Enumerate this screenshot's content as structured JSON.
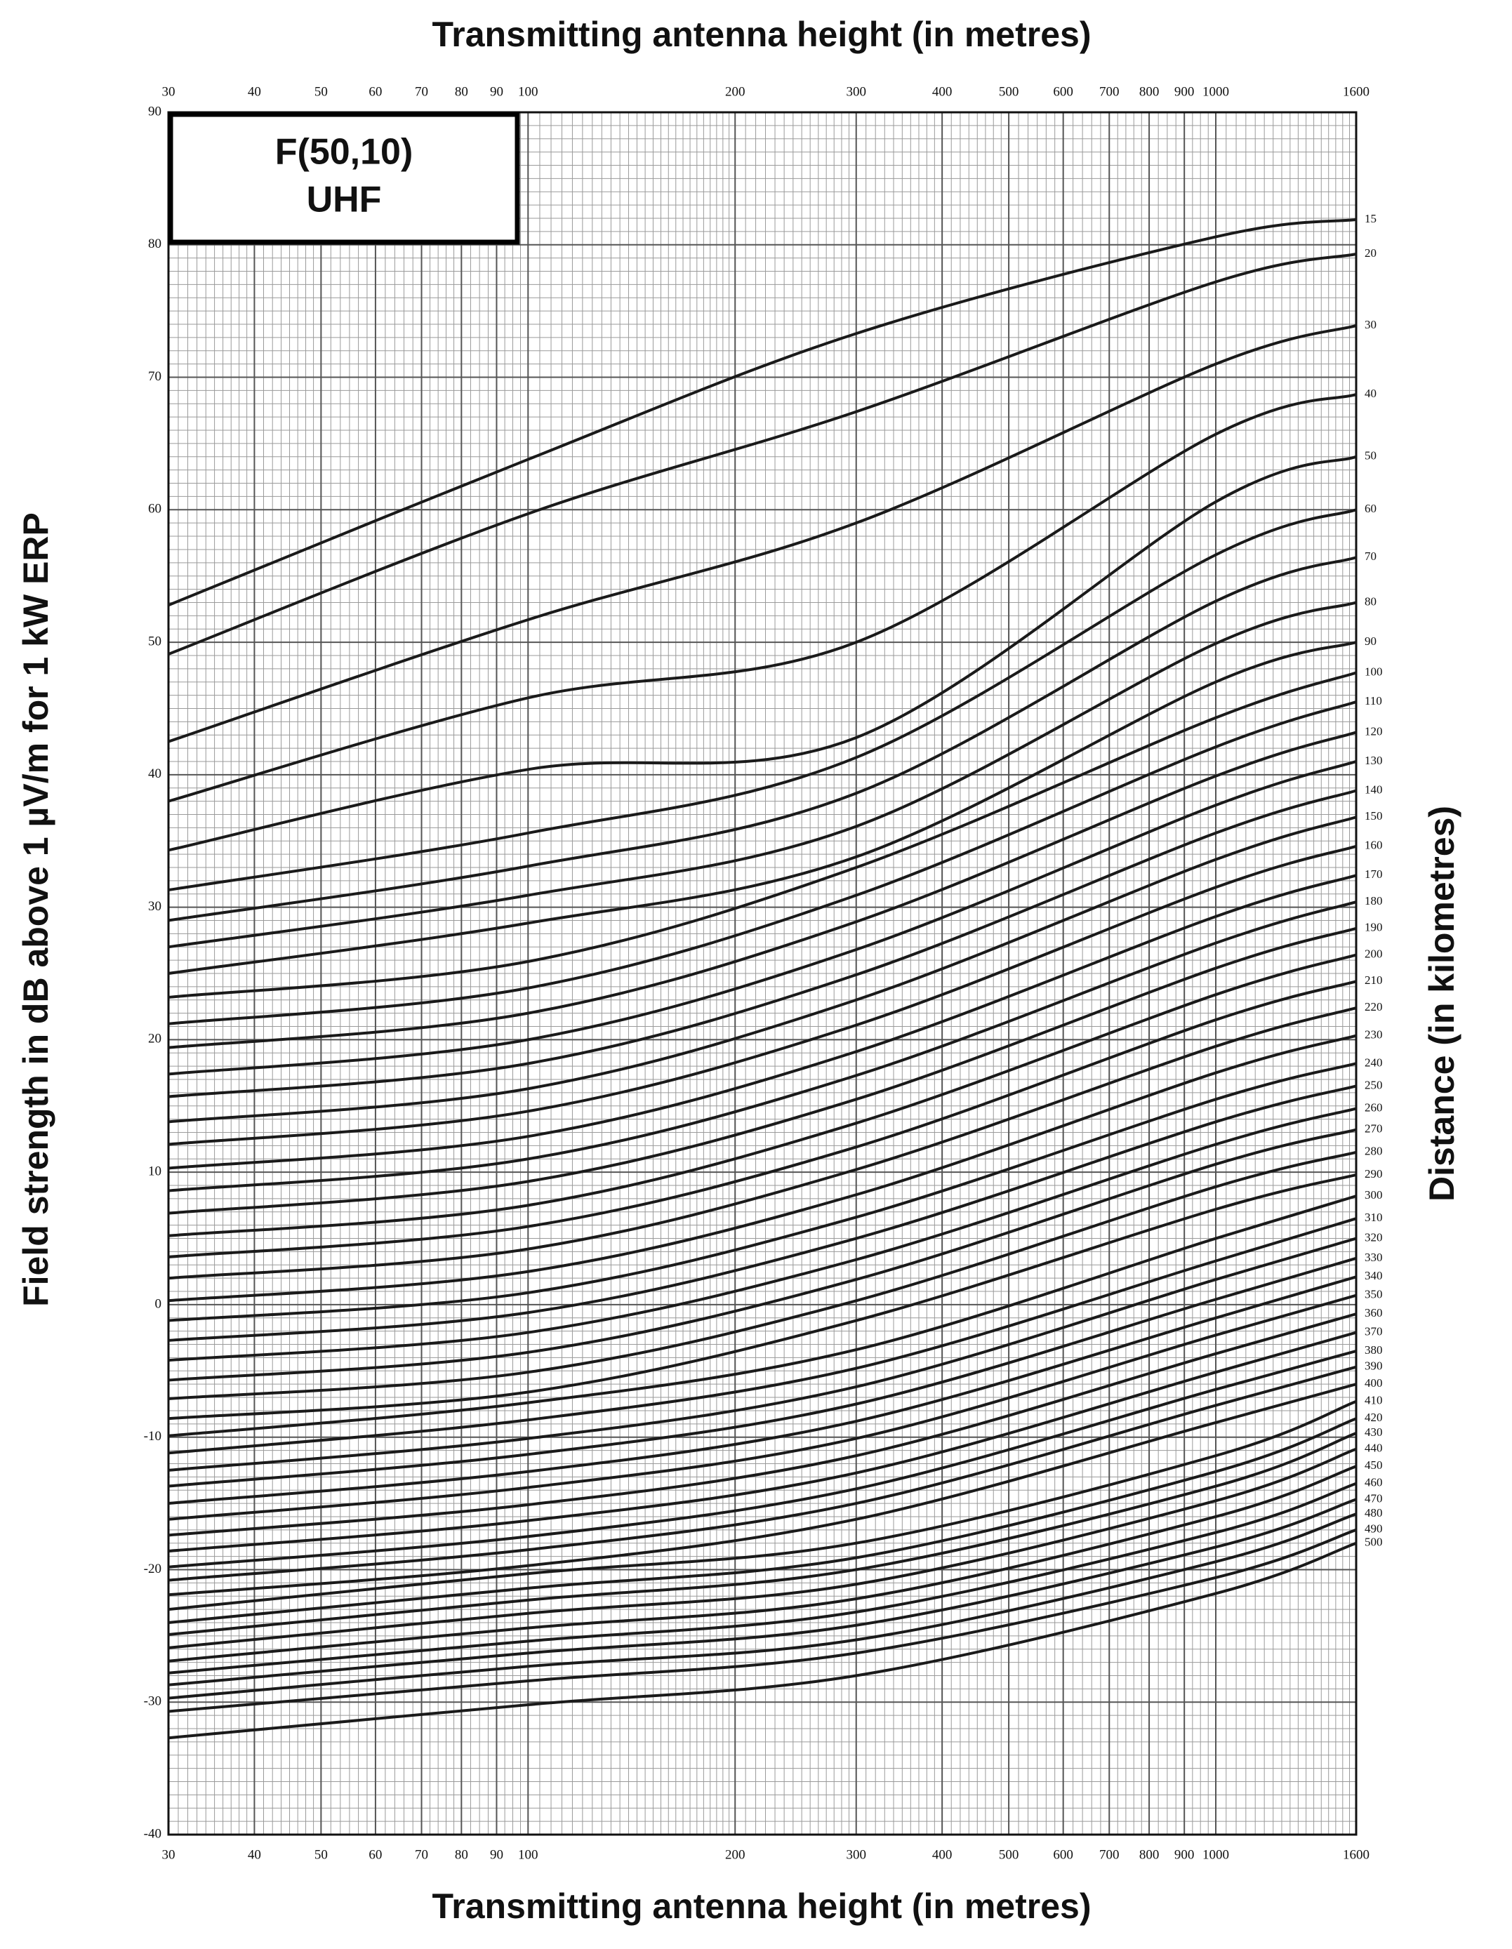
{
  "chart_data": {
    "type": "line",
    "title": "Transmitting antenna height (in metres)",
    "xlabel": "Transmitting antenna height (in metres)",
    "ylabel": "Field strength in dB above 1 µV/m for 1 kW ERP",
    "y2label": "Distance (in kilometres)",
    "annotation": [
      "F(50,10)",
      "UHF"
    ],
    "xscale": "log",
    "grid": true,
    "xlim": [
      30,
      1600
    ],
    "ylim": [
      -40,
      90
    ],
    "xticks": [
      30,
      40,
      50,
      60,
      70,
      80,
      90,
      100,
      200,
      300,
      400,
      500,
      600,
      700,
      800,
      900,
      1000,
      1600
    ],
    "yticks": [
      -40,
      -30,
      -20,
      -10,
      0,
      10,
      20,
      30,
      40,
      50,
      60,
      70,
      80,
      90
    ],
    "x": [
      30,
      100,
      300,
      1000,
      1600
    ],
    "series": [
      {
        "name": "15",
        "color": "#1a1a1a",
        "values": [
          52.8,
          63.8,
          73.3,
          80.6,
          81.9
        ]
      },
      {
        "name": "20",
        "color": "#1a1a1a",
        "values": [
          49.1,
          59.7,
          67.4,
          77.2,
          79.3
        ]
      },
      {
        "name": "30",
        "color": "#1a1a1a",
        "values": [
          42.5,
          51.7,
          59.0,
          71.0,
          73.9
        ]
      },
      {
        "name": "40",
        "color": "#1a1a1a",
        "values": [
          38.0,
          45.8,
          50.0,
          65.7,
          68.7
        ]
      },
      {
        "name": "50",
        "color": "#1a1a1a",
        "values": [
          34.3,
          40.4,
          42.8,
          60.6,
          64.0
        ]
      },
      {
        "name": "60",
        "color": "#1a1a1a",
        "values": [
          31.3,
          35.6,
          41.3,
          56.6,
          60.0
        ]
      },
      {
        "name": "70",
        "color": "#1a1a1a",
        "values": [
          29.0,
          33.1,
          38.6,
          53.1,
          56.4
        ]
      },
      {
        "name": "80",
        "color": "#1a1a1a",
        "values": [
          27.0,
          30.9,
          36.1,
          49.9,
          53.0
        ]
      },
      {
        "name": "90",
        "color": "#1a1a1a",
        "values": [
          25.0,
          28.8,
          33.8,
          47.0,
          50.0
        ]
      },
      {
        "name": "100",
        "color": "#1a1a1a",
        "values": [
          23.2,
          25.9,
          33.0,
          44.3,
          47.7
        ]
      },
      {
        "name": "110",
        "color": "#1a1a1a",
        "values": [
          21.2,
          23.9,
          30.9,
          42.1,
          45.5
        ]
      },
      {
        "name": "120",
        "color": "#1a1a1a",
        "values": [
          19.4,
          22.0,
          28.9,
          39.9,
          43.2
        ]
      },
      {
        "name": "130",
        "color": "#1a1a1a",
        "values": [
          17.4,
          20.0,
          26.8,
          37.7,
          41.0
        ]
      },
      {
        "name": "140",
        "color": "#1a1a1a",
        "values": [
          15.7,
          18.2,
          24.9,
          35.6,
          38.8
        ]
      },
      {
        "name": "150",
        "color": "#1a1a1a",
        "values": [
          13.8,
          16.3,
          23.0,
          33.6,
          36.8
        ]
      },
      {
        "name": "160",
        "color": "#1a1a1a",
        "values": [
          12.1,
          14.6,
          21.1,
          31.5,
          34.6
        ]
      },
      {
        "name": "170",
        "color": "#1a1a1a",
        "values": [
          10.3,
          12.7,
          19.1,
          29.3,
          32.4
        ]
      },
      {
        "name": "180",
        "color": "#1a1a1a",
        "values": [
          8.6,
          11.0,
          17.3,
          27.3,
          30.4
        ]
      },
      {
        "name": "190",
        "color": "#1a1a1a",
        "values": [
          6.9,
          9.3,
          15.5,
          25.4,
          28.4
        ]
      },
      {
        "name": "200",
        "color": "#1a1a1a",
        "values": [
          5.2,
          7.5,
          13.7,
          23.4,
          26.4
        ]
      },
      {
        "name": "210",
        "color": "#1a1a1a",
        "values": [
          3.6,
          5.9,
          11.9,
          21.5,
          24.4
        ]
      },
      {
        "name": "220",
        "color": "#1a1a1a",
        "values": [
          2.0,
          4.2,
          10.2,
          19.5,
          22.4
        ]
      },
      {
        "name": "230",
        "color": "#1a1a1a",
        "values": [
          0.3,
          2.5,
          8.3,
          17.5,
          20.3
        ]
      },
      {
        "name": "240",
        "color": "#1a1a1a",
        "values": [
          -1.2,
          0.9,
          6.6,
          15.5,
          18.2
        ]
      },
      {
        "name": "250",
        "color": "#1a1a1a",
        "values": [
          -2.7,
          -0.6,
          5.0,
          13.8,
          16.5
        ]
      },
      {
        "name": "260",
        "color": "#1a1a1a",
        "values": [
          -4.2,
          -2.1,
          3.4,
          12.1,
          14.8
        ]
      },
      {
        "name": "270",
        "color": "#1a1a1a",
        "values": [
          -5.7,
          -3.6,
          1.9,
          10.6,
          13.2
        ]
      },
      {
        "name": "280",
        "color": "#1a1a1a",
        "values": [
          -7.1,
          -5.1,
          0.3,
          8.9,
          11.5
        ]
      },
      {
        "name": "290",
        "color": "#1a1a1a",
        "values": [
          -8.6,
          -6.6,
          -1.2,
          7.2,
          9.8
        ]
      },
      {
        "name": "300",
        "color": "#1a1a1a",
        "values": [
          -9.9,
          -7.4,
          -3.4,
          5.0,
          8.2
        ]
      },
      {
        "name": "310",
        "color": "#1a1a1a",
        "values": [
          -11.2,
          -8.7,
          -4.8,
          3.3,
          6.5
        ]
      },
      {
        "name": "320",
        "color": "#1a1a1a",
        "values": [
          -12.5,
          -10.1,
          -6.2,
          1.9,
          5.0
        ]
      },
      {
        "name": "330",
        "color": "#1a1a1a",
        "values": [
          -13.7,
          -11.3,
          -7.5,
          0.4,
          3.5
        ]
      },
      {
        "name": "340",
        "color": "#1a1a1a",
        "values": [
          -15.0,
          -12.6,
          -8.8,
          -1.0,
          2.1
        ]
      },
      {
        "name": "350",
        "color": "#1a1a1a",
        "values": [
          -16.2,
          -13.8,
          -10.1,
          -2.3,
          0.7
        ]
      },
      {
        "name": "360",
        "color": "#1a1a1a",
        "values": [
          -17.4,
          -15.1,
          -11.4,
          -3.7,
          -0.7
        ]
      },
      {
        "name": "370",
        "color": "#1a1a1a",
        "values": [
          -18.6,
          -16.3,
          -12.7,
          -5.1,
          -2.1
        ]
      },
      {
        "name": "380",
        "color": "#1a1a1a",
        "values": [
          -19.8,
          -17.5,
          -13.9,
          -6.4,
          -3.5
        ]
      },
      {
        "name": "390",
        "color": "#1a1a1a",
        "values": [
          -20.8,
          -18.5,
          -15.0,
          -7.6,
          -4.7
        ]
      },
      {
        "name": "400",
        "color": "#1a1a1a",
        "values": [
          -21.9,
          -19.7,
          -16.2,
          -8.9,
          -6.0
        ]
      },
      {
        "name": "410",
        "color": "#1a1a1a",
        "values": [
          -23.0,
          -20.3,
          -18.0,
          -11.4,
          -7.3
        ]
      },
      {
        "name": "420",
        "color": "#1a1a1a",
        "values": [
          -24.0,
          -21.4,
          -19.1,
          -12.6,
          -8.6
        ]
      },
      {
        "name": "430",
        "color": "#1a1a1a",
        "values": [
          -24.9,
          -22.3,
          -20.0,
          -13.7,
          -9.7
        ]
      },
      {
        "name": "440",
        "color": "#1a1a1a",
        "values": [
          -25.9,
          -23.3,
          -21.1,
          -14.8,
          -10.9
        ]
      },
      {
        "name": "450",
        "color": "#1a1a1a",
        "values": [
          -26.9,
          -24.4,
          -22.2,
          -16.0,
          -12.2
        ]
      },
      {
        "name": "460",
        "color": "#1a1a1a",
        "values": [
          -27.8,
          -25.4,
          -23.2,
          -17.2,
          -13.5
        ]
      },
      {
        "name": "470",
        "color": "#1a1a1a",
        "values": [
          -28.7,
          -26.3,
          -24.2,
          -18.3,
          -14.7
        ]
      },
      {
        "name": "480",
        "color": "#1a1a1a",
        "values": [
          -29.7,
          -27.3,
          -25.3,
          -19.4,
          -15.8
        ]
      },
      {
        "name": "490",
        "color": "#1a1a1a",
        "values": [
          -30.7,
          -28.4,
          -26.3,
          -20.6,
          -17.0
        ]
      },
      {
        "name": "500",
        "color": "#1a1a1a",
        "values": [
          -32.7,
          -30.2,
          -28.0,
          -21.8,
          -18.0
        ]
      }
    ]
  }
}
